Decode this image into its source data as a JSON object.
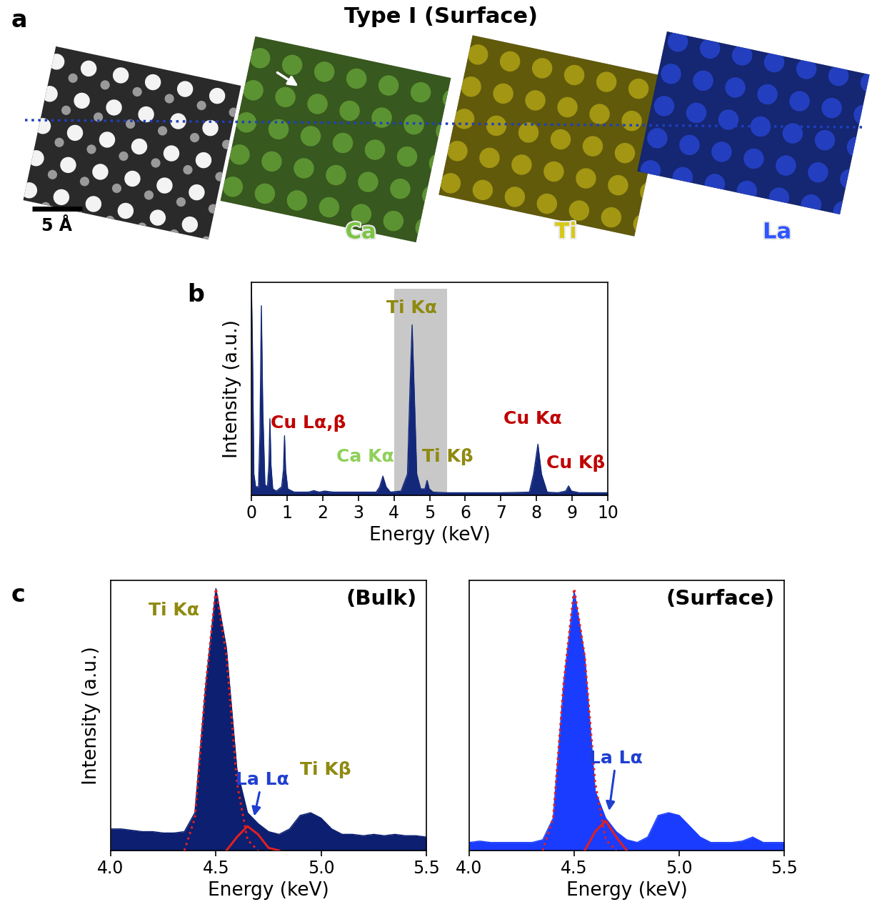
{
  "title": "Type Ⅰ (Surface)",
  "panel_a": {
    "panel_label": "a",
    "scale_bar": "5 Å",
    "maps": [
      {
        "name": "Ca",
        "color": "#7cc444"
      },
      {
        "name": "Ti",
        "color": "#d8c81a"
      },
      {
        "name": "La",
        "color": "#2f55ff"
      }
    ]
  },
  "chart_data": [
    {
      "type": "area",
      "panel_label": "b",
      "x_label": "Energy (keV)",
      "y_label": "Intensity (a.u.)",
      "xlim": [
        0,
        10
      ],
      "xticks": [
        0,
        1,
        2,
        3,
        4,
        5,
        6,
        7,
        8,
        9,
        10
      ],
      "ylim": [
        0,
        100
      ],
      "tick_labels": "x",
      "highlight": {
        "x": [
          4.0,
          5.5
        ],
        "y": [
          0,
          97
        ]
      },
      "series": [
        {
          "color": "#14287a",
          "x": [
            0.0,
            0.03,
            0.07,
            0.12,
            0.2,
            0.24,
            0.28,
            0.32,
            0.38,
            0.45,
            0.49,
            0.52,
            0.55,
            0.6,
            0.7,
            0.85,
            0.9,
            0.93,
            0.96,
            1.02,
            1.2,
            1.6,
            1.75,
            1.9,
            2.05,
            2.3,
            3.0,
            3.5,
            3.6,
            3.69,
            3.78,
            3.9,
            4.2,
            4.38,
            4.45,
            4.51,
            4.57,
            4.64,
            4.75,
            4.87,
            4.93,
            4.99,
            5.1,
            5.5,
            6.0,
            7.0,
            7.8,
            7.92,
            8.04,
            8.14,
            8.3,
            8.6,
            8.82,
            8.9,
            8.98,
            9.2,
            10.0
          ],
          "values": [
            100,
            70,
            10,
            4,
            4,
            30,
            89,
            40,
            5,
            4,
            14,
            36,
            14,
            3,
            2,
            4,
            12,
            28,
            12,
            3,
            1.5,
            1.5,
            2.2,
            1.5,
            2,
            1.5,
            1.5,
            1.5,
            4,
            9,
            4,
            1.5,
            2,
            10,
            50,
            80,
            48,
            10,
            3,
            3,
            7,
            3,
            1.5,
            1.2,
            1.2,
            1.2,
            1.5,
            10,
            24,
            10,
            1.5,
            1.2,
            2,
            4.4,
            2,
            1.2,
            1.2
          ]
        }
      ],
      "annotations": [
        {
          "text": "Cu Lα,β",
          "color": "#c00000"
        },
        {
          "text": "Ti Kα",
          "color": "#8f8a10"
        },
        {
          "text": "Ca Kα",
          "color": "#8fd05a"
        },
        {
          "text": "Ti Kβ",
          "color": "#8f8a10"
        },
        {
          "text": "Cu Kα",
          "color": "#c00000"
        },
        {
          "text": "Cu Kβ",
          "color": "#c00000"
        }
      ]
    },
    {
      "type": "area",
      "panel_label": "c",
      "title": "(Bulk)",
      "x_label": "Energy (keV)",
      "y_label": "Intensity (a.u.)",
      "xlim": [
        4.0,
        5.5
      ],
      "xticks": [
        {
          "value": 4.0,
          "label": "4.0"
        },
        {
          "value": 4.5,
          "label": "4.5"
        },
        {
          "value": 5.0,
          "label": "5.0"
        },
        {
          "value": 5.5,
          "label": "5.5"
        }
      ],
      "ylim": [
        0,
        100
      ],
      "tick_labels": "x",
      "series": [
        {
          "color": "#0c1f70",
          "x": [
            4.0,
            4.05,
            4.1,
            4.15,
            4.2,
            4.25,
            4.3,
            4.35,
            4.4,
            4.45,
            4.5,
            4.55,
            4.6,
            4.65,
            4.7,
            4.75,
            4.8,
            4.85,
            4.9,
            4.95,
            5.0,
            5.05,
            5.1,
            5.15,
            5.2,
            5.25,
            5.3,
            5.35,
            5.4,
            5.45,
            5.5
          ],
          "values": [
            8,
            8,
            7.5,
            7,
            7,
            6.5,
            6.5,
            7,
            14,
            60,
            97,
            75,
            30,
            14,
            10,
            7,
            6,
            8,
            13,
            14,
            12,
            8,
            6,
            6,
            5.5,
            6,
            5.5,
            6,
            5.5,
            5.5,
            5
          ]
        },
        {
          "type": "line",
          "color": "#e02020",
          "line_style": "dotted",
          "x": [
            4.35,
            4.4,
            4.45,
            4.5,
            4.55,
            4.6,
            4.65,
            4.7
          ],
          "values": [
            0,
            12,
            60,
            97,
            72,
            25,
            4,
            0
          ]
        },
        {
          "type": "line",
          "color": "#e02020",
          "line_style": "solid",
          "x": [
            4.55,
            4.6,
            4.65,
            4.7,
            4.75,
            4.8
          ],
          "values": [
            0,
            5,
            9,
            6,
            1,
            0
          ]
        }
      ],
      "annotations": [
        {
          "text": "Ti Kα",
          "color": "#8f8a10"
        },
        {
          "text": "La Lα",
          "color": "#1f3fd0"
        },
        {
          "text": "Ti Kβ",
          "color": "#8f8a10"
        }
      ]
    },
    {
      "type": "area",
      "title": "(Surface)",
      "x_label": "Energy (keV)",
      "xlim": [
        4.0,
        5.5
      ],
      "xticks": [
        {
          "value": 4.0,
          "label": "4.0"
        },
        {
          "value": 4.5,
          "label": "4.5"
        },
        {
          "value": 5.0,
          "label": "5.0"
        },
        {
          "value": 5.5,
          "label": "5.5"
        }
      ],
      "ylim": [
        0,
        100
      ],
      "tick_labels": "x",
      "series": [
        {
          "color": "#1a3cff",
          "x": [
            4.0,
            4.05,
            4.1,
            4.15,
            4.2,
            4.25,
            4.3,
            4.35,
            4.4,
            4.45,
            4.5,
            4.55,
            4.6,
            4.65,
            4.7,
            4.75,
            4.8,
            4.85,
            4.9,
            4.95,
            5.0,
            5.05,
            5.1,
            5.15,
            5.2,
            5.25,
            5.3,
            5.35,
            5.4,
            5.45,
            5.5
          ],
          "values": [
            3,
            3.5,
            3,
            3,
            3,
            3,
            3,
            4,
            12,
            62,
            96,
            72,
            22,
            12,
            7,
            4,
            3,
            5,
            13,
            14,
            13,
            9,
            5,
            3,
            3,
            3,
            3.5,
            5,
            3,
            3,
            3
          ]
        },
        {
          "type": "line",
          "color": "#e02020",
          "line_style": "dotted",
          "x": [
            4.35,
            4.4,
            4.45,
            4.5,
            4.55,
            4.6,
            4.65,
            4.7
          ],
          "values": [
            0,
            12,
            62,
            97,
            72,
            25,
            4,
            0
          ]
        },
        {
          "type": "line",
          "color": "#e02020",
          "line_style": "solid",
          "x": [
            4.55,
            4.6,
            4.65,
            4.7,
            4.75
          ],
          "values": [
            0,
            7,
            11,
            5,
            0
          ]
        }
      ],
      "annotations": [
        {
          "text": "La Lα",
          "color": "#1f3fd0"
        }
      ]
    }
  ]
}
